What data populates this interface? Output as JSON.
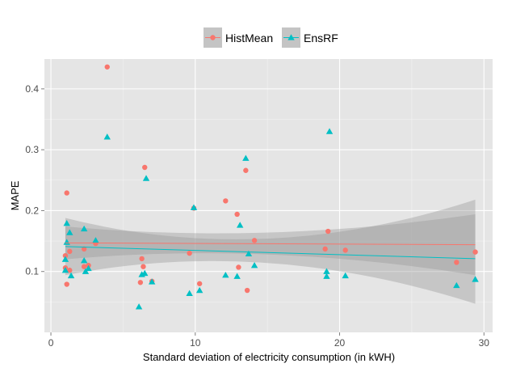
{
  "chart_data": {
    "type": "scatter",
    "xlabel": "Standard deviation of electricity consumption (in kWH)",
    "ylabel": "MAPE",
    "xlim": [
      -0.45,
      30.6
    ],
    "ylim": [
      0.0,
      0.449
    ],
    "xticks": [
      0,
      10,
      20,
      30
    ],
    "yticks": [
      0.1,
      0.2,
      0.3,
      0.4
    ],
    "xtick_labels": [
      "0",
      "10",
      "20",
      "30"
    ],
    "ytick_labels": [
      "0.1",
      "0.2",
      "0.3",
      "0.4"
    ],
    "grid": true,
    "legend_position": "top",
    "series": [
      {
        "name": "HistMean",
        "marker": "circle",
        "color": "#F8766D",
        "points": [
          [
            3.9,
            0.436
          ],
          [
            1.1,
            0.229
          ],
          [
            6.5,
            0.271
          ],
          [
            13.5,
            0.266
          ],
          [
            12.1,
            0.216
          ],
          [
            9.9,
            0.204
          ],
          [
            12.9,
            0.194
          ],
          [
            19.2,
            0.166
          ],
          [
            14.1,
            0.151
          ],
          [
            3.1,
            0.146
          ],
          [
            1.3,
            0.133
          ],
          [
            1.0,
            0.126
          ],
          [
            19.0,
            0.137
          ],
          [
            20.4,
            0.135
          ],
          [
            29.4,
            0.132
          ],
          [
            9.6,
            0.13
          ],
          [
            2.3,
            0.137
          ],
          [
            6.3,
            0.121
          ],
          [
            2.3,
            0.108
          ],
          [
            1.0,
            0.106
          ],
          [
            13.0,
            0.107
          ],
          [
            2.6,
            0.11
          ],
          [
            28.1,
            0.115
          ],
          [
            6.4,
            0.108
          ],
          [
            1.3,
            0.102
          ],
          [
            7.0,
            0.084
          ],
          [
            6.2,
            0.082
          ],
          [
            10.3,
            0.08
          ],
          [
            1.1,
            0.079
          ],
          [
            13.6,
            0.069
          ]
        ],
        "fit": [
          [
            1.0,
            0.147
          ],
          [
            29.4,
            0.144
          ]
        ],
        "ci_band": [
          [
            1.0,
            0.12,
            0.174
          ],
          [
            15.0,
            0.128,
            0.164
          ],
          [
            29.4,
            0.094,
            0.194
          ]
        ]
      },
      {
        "name": "EnsRF",
        "marker": "triangle",
        "color": "#00BFC4",
        "points": [
          [
            19.3,
            0.33
          ],
          [
            3.9,
            0.321
          ],
          [
            13.5,
            0.286
          ],
          [
            6.6,
            0.253
          ],
          [
            9.9,
            0.205
          ],
          [
            1.1,
            0.179
          ],
          [
            13.1,
            0.176
          ],
          [
            2.3,
            0.17
          ],
          [
            1.3,
            0.164
          ],
          [
            3.1,
            0.151
          ],
          [
            1.1,
            0.148
          ],
          [
            13.7,
            0.129
          ],
          [
            1.0,
            0.12
          ],
          [
            2.3,
            0.118
          ],
          [
            14.1,
            0.11
          ],
          [
            2.6,
            0.105
          ],
          [
            1.0,
            0.102
          ],
          [
            2.4,
            0.1
          ],
          [
            19.1,
            0.1
          ],
          [
            6.5,
            0.097
          ],
          [
            6.3,
            0.095
          ],
          [
            12.1,
            0.094
          ],
          [
            1.4,
            0.093
          ],
          [
            20.4,
            0.093
          ],
          [
            19.1,
            0.092
          ],
          [
            12.9,
            0.092
          ],
          [
            29.4,
            0.087
          ],
          [
            7.0,
            0.083
          ],
          [
            28.1,
            0.077
          ],
          [
            10.3,
            0.069
          ],
          [
            9.6,
            0.064
          ],
          [
            6.1,
            0.042
          ]
        ],
        "fit": [
          [
            1.0,
            0.141
          ],
          [
            29.4,
            0.121
          ]
        ],
        "ci_band": [
          [
            1.0,
            0.094,
            0.188
          ],
          [
            15.0,
            0.114,
            0.154
          ],
          [
            29.4,
            0.047,
            0.218
          ]
        ]
      }
    ]
  }
}
